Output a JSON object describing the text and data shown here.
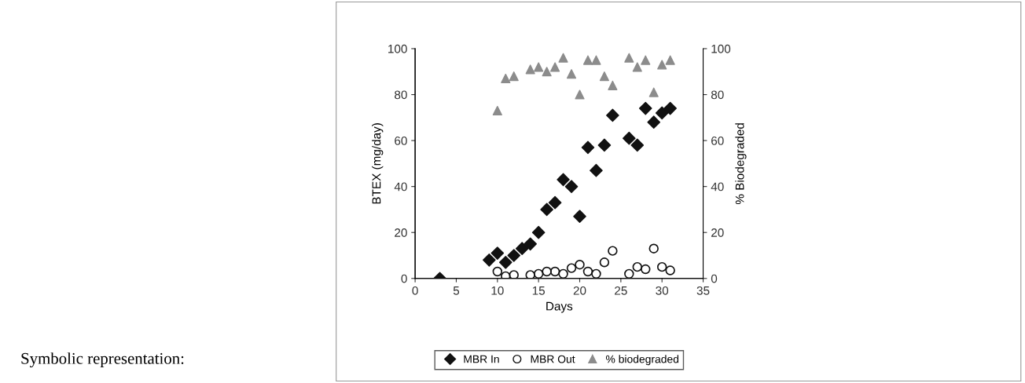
{
  "chart_data": {
    "type": "scatter",
    "xlabel": "Days",
    "ylabel": "BTEX (mg/day)",
    "y2label": "% Biodegraded",
    "xlim": [
      0,
      35
    ],
    "xticks": [
      0,
      5,
      10,
      15,
      20,
      25,
      30,
      35
    ],
    "ylim": [
      0,
      100
    ],
    "yticks": [
      0,
      20,
      40,
      60,
      80,
      100
    ],
    "y2lim": [
      0,
      100
    ],
    "y2ticks": [
      0,
      20,
      40,
      60,
      80,
      100
    ],
    "grid": false,
    "legend": "bottom",
    "annotations": [
      "Symbolic representation:"
    ],
    "series": [
      {
        "name": "MBR In",
        "color": "#111111",
        "marker": "diamond",
        "x": [
          3,
          9,
          10,
          11,
          12,
          13,
          14,
          15,
          16,
          17,
          18,
          19,
          20,
          21,
          22,
          23,
          24,
          26,
          27,
          28,
          29,
          30,
          31
        ],
        "values": [
          0,
          8,
          11,
          7,
          10,
          13,
          15,
          20,
          30,
          33,
          43,
          40,
          27,
          57,
          47,
          58,
          71,
          61,
          58,
          74,
          68,
          72,
          74
        ]
      },
      {
        "name": "MBR Out",
        "color": "#111111",
        "marker": "circle",
        "x": [
          10,
          11,
          12,
          14,
          15,
          16,
          17,
          18,
          19,
          20,
          21,
          22,
          23,
          24,
          26,
          27,
          28,
          29,
          30,
          31
        ],
        "values": [
          3,
          1,
          1.5,
          1.5,
          2,
          3,
          3,
          2,
          4.5,
          6,
          3,
          2,
          7,
          12,
          2,
          5,
          4,
          13,
          5,
          3.5
        ]
      },
      {
        "name": "% biodegraded",
        "color": "#8c8c8c",
        "marker": "triangle",
        "axis": "y2",
        "x": [
          10,
          11,
          12,
          14,
          15,
          16,
          17,
          18,
          19,
          20,
          21,
          22,
          23,
          24,
          26,
          27,
          28,
          29,
          30,
          31
        ],
        "values": [
          73,
          87,
          88,
          91,
          92,
          90,
          92,
          96,
          89,
          80,
          95,
          95,
          88,
          84,
          96,
          92,
          95,
          81,
          93,
          95
        ]
      }
    ]
  }
}
